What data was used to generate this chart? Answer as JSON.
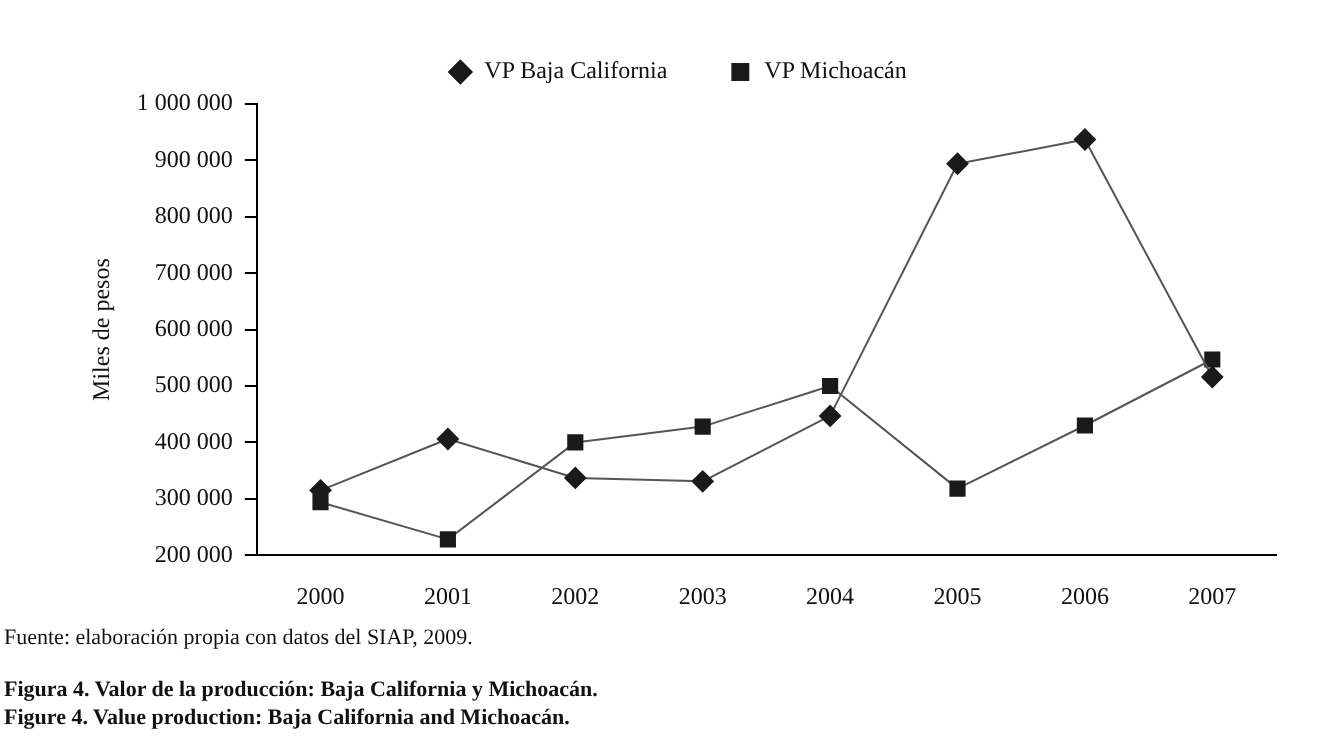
{
  "chart_data": {
    "type": "line",
    "ylabel": "Miles de pesos",
    "categories": [
      "2000",
      "2001",
      "2002",
      "2003",
      "2004",
      "2005",
      "2006",
      "2007"
    ],
    "series": [
      {
        "name": "VP Baja California",
        "color": "#1a1a1a",
        "marker": "diamond",
        "values": [
          315000,
          406000,
          337000,
          331000,
          447000,
          894000,
          937000,
          516000
        ]
      },
      {
        "name": "VP Michoacán",
        "color": "#1a1a1a",
        "marker": "square",
        "values": [
          294000,
          228000,
          400000,
          428000,
          500000,
          318000,
          430000,
          547000
        ]
      }
    ],
    "ylim": [
      200000,
      1000000
    ],
    "yticks": [
      {
        "value": 200000,
        "label": "200 000"
      },
      {
        "value": 300000,
        "label": "300 000"
      },
      {
        "value": 400000,
        "label": "400 000"
      },
      {
        "value": 500000,
        "label": "500 000"
      },
      {
        "value": 600000,
        "label": "600 000"
      },
      {
        "value": 700000,
        "label": "700 000"
      },
      {
        "value": 800000,
        "label": "800 000"
      },
      {
        "value": 900000,
        "label": "900 000"
      },
      {
        "value": 1000000,
        "label": "1 000 000"
      }
    ],
    "grid": false,
    "legend": "top",
    "line_style": "solid",
    "annotations": [
      "Fuente: elaboración propia con datos del SIAP, 2009.",
      "Figura 4. Valor de la producción: Baja California y Michoacán.",
      "Figure 4. Value production: Baja California and Michoacán."
    ]
  }
}
